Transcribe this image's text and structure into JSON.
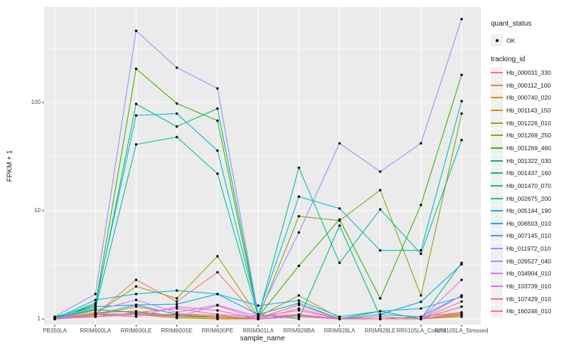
{
  "legend": {
    "quant_status_title": "quant_status",
    "quant_status_items": [
      {
        "label": "OK",
        "symbol": "point",
        "color": "#000000"
      }
    ],
    "tracking_id_title": "tracking_id"
  },
  "colors": {
    "panel_background": "#EBEBEB",
    "gridline": "#FFFFFF",
    "tick_text": "#4D4D4D",
    "point": "#000000",
    "legend_key_background": "#F0F0F0"
  },
  "axes": {
    "y_tick_labels": [
      "1",
      "10",
      "100"
    ],
    "y_tick_values": [
      1,
      10,
      100
    ],
    "y_minor_values": [
      3.162,
      31.62,
      316.2
    ]
  },
  "chart_data": {
    "type": "line",
    "title": "",
    "xlabel": "sample_name",
    "ylabel": "FPKM + 1",
    "y_scale": "log10",
    "ylim": [
      1,
      750
    ],
    "grid": true,
    "legend_position": "right",
    "point_shape": "filled-black-point-on-every-vertex",
    "categories": [
      "PB350LA",
      "RRIM600LA",
      "RRIM600LE",
      "RRIM600SE",
      "RRIM600PE",
      "RRIM901LA",
      "RRIM928BA",
      "RRIM928LA",
      "RRIM928LE",
      "RRII105LA_Control",
      "RRII105LA_Stressed"
    ],
    "series": [
      {
        "name": "Hb_000031_330",
        "color": "#F8766D",
        "values": [
          1.02,
          1.1,
          2.3,
          1.45,
          2.7,
          1.02,
          1.35,
          1,
          1,
          1,
          1.45
        ]
      },
      {
        "name": "Hb_000112_100",
        "color": "#EA8331",
        "values": [
          1,
          1.08,
          1.3,
          1.12,
          1.08,
          1,
          1.05,
          1,
          1,
          1,
          1.12
        ]
      },
      {
        "name": "Hb_000740_020",
        "color": "#D89000",
        "values": [
          1,
          1.15,
          1.18,
          1.05,
          1.02,
          1,
          1.08,
          1,
          1,
          1,
          1.08
        ]
      },
      {
        "name": "Hb_001143_150",
        "color": "#C09B00",
        "values": [
          1,
          1.05,
          1.1,
          1.02,
          1,
          1,
          1.05,
          1,
          1,
          1,
          1.05
        ]
      },
      {
        "name": "Hb_001226_010",
        "color": "#A3A500",
        "values": [
          1,
          1.12,
          2,
          1.55,
          3.8,
          1.05,
          1.65,
          1.02,
          1,
          1.05,
          1.15
        ]
      },
      {
        "name": "Hb_001269_250",
        "color": "#7CAE00",
        "values": [
          1,
          1.1,
          1.12,
          1.05,
          1.05,
          1.02,
          8.9,
          8.1,
          15.5,
          1.65,
          79
        ]
      },
      {
        "name": "Hb_001269_460",
        "color": "#39B600",
        "values": [
          1.03,
          1.35,
          205,
          98,
          68,
          1.05,
          3.1,
          8.3,
          1.55,
          11.3,
          180
        ]
      },
      {
        "name": "Hb_001322_030",
        "color": "#00BB4E",
        "values": [
          1,
          1.22,
          1.15,
          1.08,
          1.05,
          1,
          1.1,
          1,
          1.18,
          1,
          1.3
        ]
      },
      {
        "name": "Hb_001437_160",
        "color": "#00BF7D",
        "values": [
          1.05,
          1.3,
          97,
          60,
          88,
          1.1,
          1,
          7.3,
          1.05,
          1,
          3.3
        ]
      },
      {
        "name": "Hb_001470_070",
        "color": "#00C1A3",
        "values": [
          1,
          1.25,
          41,
          48,
          22,
          1.05,
          25,
          3.3,
          10.3,
          4,
          45
        ]
      },
      {
        "name": "Hb_002675_200",
        "color": "#00BFC4",
        "values": [
          1,
          1.4,
          76,
          79,
          36,
          1.1,
          13.5,
          10.5,
          4.3,
          4.3,
          103
        ]
      },
      {
        "name": "Hb_005144_190",
        "color": "#00BAE0",
        "values": [
          1,
          1.5,
          1.7,
          1.83,
          1.7,
          1.33,
          1.48,
          1.05,
          1.18,
          1.25,
          1.6
        ]
      },
      {
        "name": "Hb_006503_010",
        "color": "#00B0F6",
        "values": [
          1,
          1.3,
          1.35,
          1.37,
          1.7,
          1.1,
          1.4,
          1,
          1.1,
          1.44,
          3.2
        ]
      },
      {
        "name": "Hb_007145_010",
        "color": "#35A2FF",
        "values": [
          1,
          1.1,
          1.35,
          1.1,
          1.05,
          1,
          1.05,
          1,
          1.1,
          1.05,
          1.65
        ]
      },
      {
        "name": "Hb_011972_010",
        "color": "#9590FF",
        "values": [
          1.05,
          1.7,
          460,
          210,
          135,
          1.1,
          6.3,
          42,
          23,
          42,
          590
        ]
      },
      {
        "name": "Hb_026527_040",
        "color": "#C77CFF",
        "values": [
          1,
          1.2,
          1.5,
          1.15,
          1.35,
          1.05,
          1.1,
          1,
          1,
          1,
          1.65
        ]
      },
      {
        "name": "Hb_034904_010",
        "color": "#E76BF3",
        "values": [
          1,
          1.05,
          1.1,
          1.05,
          1.33,
          1,
          1.05,
          1,
          1,
          1,
          2.3
        ]
      },
      {
        "name": "Hb_103739_010",
        "color": "#FA62DB",
        "values": [
          1,
          1.05,
          1.15,
          1.25,
          1.1,
          1.05,
          1.2,
          1,
          1,
          1,
          1.3
        ]
      },
      {
        "name": "Hb_107429_010",
        "color": "#FF62BC",
        "values": [
          1,
          1.1,
          1.05,
          1.3,
          1.2,
          1,
          1.25,
          1,
          1.05,
          1,
          1.15
        ]
      },
      {
        "name": "Hb_160246_010",
        "color": "#FF6A98",
        "values": [
          1.02,
          1.05,
          1.1,
          1.1,
          1.05,
          1,
          1.1,
          1,
          1,
          1,
          1.1
        ]
      }
    ]
  }
}
